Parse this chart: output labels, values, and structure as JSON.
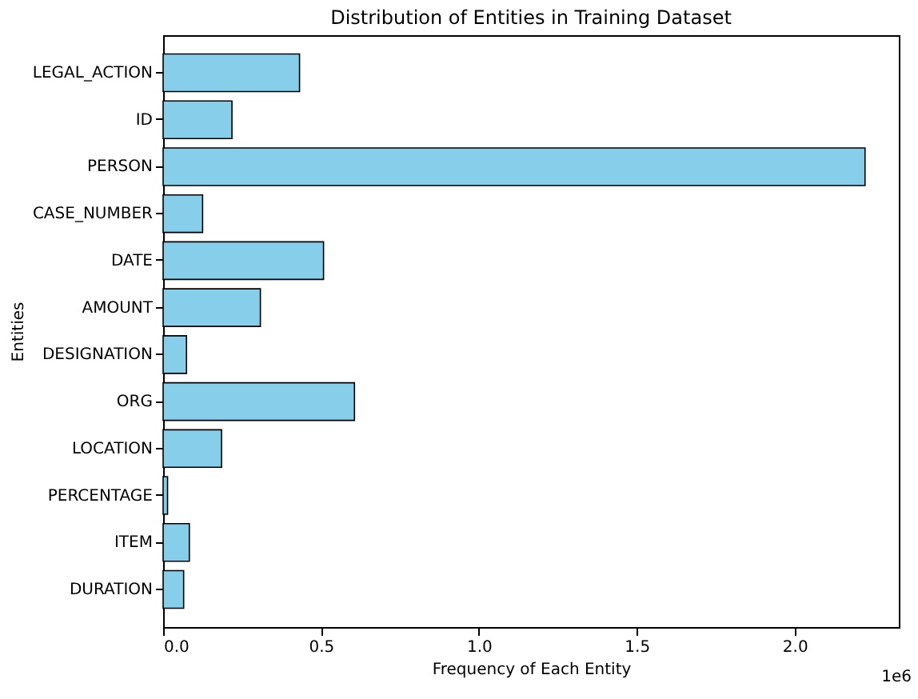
{
  "chart_data": {
    "type": "bar",
    "orientation": "horizontal",
    "title": "Distribution of Entities in Training Dataset",
    "xlabel": "Frequency of Each Entity",
    "ylabel": "Entities",
    "categories": [
      "LEGAL_ACTION",
      "ID",
      "PERSON",
      "CASE_NUMBER",
      "DATE",
      "AMOUNT",
      "DESIGNATION",
      "ORG",
      "LOCATION",
      "PERCENTAGE",
      "ITEM",
      "DURATION"
    ],
    "values": [
      0.432,
      0.218,
      2.223,
      0.125,
      0.508,
      0.308,
      0.074,
      0.606,
      0.185,
      0.014,
      0.083,
      0.065
    ],
    "color": "#87ceeb",
    "xlim": [
      0,
      2.33
    ],
    "xticks": [
      {
        "value": 0,
        "label": "0.0"
      },
      {
        "value": 0.5,
        "label": "0.5"
      },
      {
        "value": 1,
        "label": "1.0"
      },
      {
        "value": 1.5,
        "label": "1.5"
      },
      {
        "value": 2,
        "label": "2.0"
      }
    ],
    "annotations": [
      "1e6"
    ]
  }
}
